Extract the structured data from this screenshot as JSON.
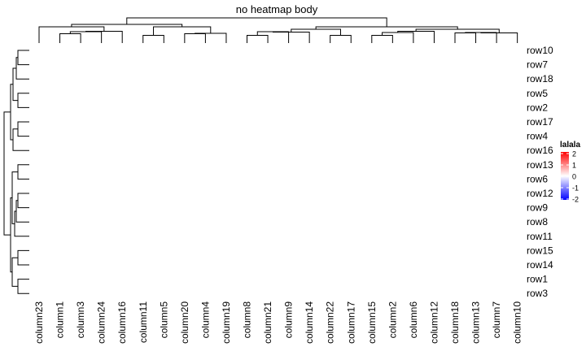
{
  "chart_data": {
    "type": "heatmap",
    "title": "no heatmap body",
    "body_drawn": false,
    "row_labels": [
      "row10",
      "row7",
      "row18",
      "row5",
      "row2",
      "row17",
      "row4",
      "row16",
      "row13",
      "row6",
      "row12",
      "row9",
      "row8",
      "row11",
      "row15",
      "row14",
      "row1",
      "row3"
    ],
    "column_labels": [
      "column23",
      "column1",
      "column3",
      "column24",
      "column16",
      "column11",
      "column5",
      "column20",
      "column4",
      "column19",
      "column8",
      "column21",
      "column9",
      "column14",
      "column22",
      "column17",
      "column15",
      "column2",
      "column6",
      "column12",
      "column18",
      "column13",
      "column7",
      "column10"
    ],
    "row_dendrogram": true,
    "column_dendrogram": true,
    "legend": {
      "title": "lalala",
      "placement": "right",
      "ticks": [
        2,
        1,
        0,
        -1,
        -2
      ],
      "colors": [
        "#0000FF",
        "#FFFFFF",
        "#FF0000"
      ]
    }
  }
}
